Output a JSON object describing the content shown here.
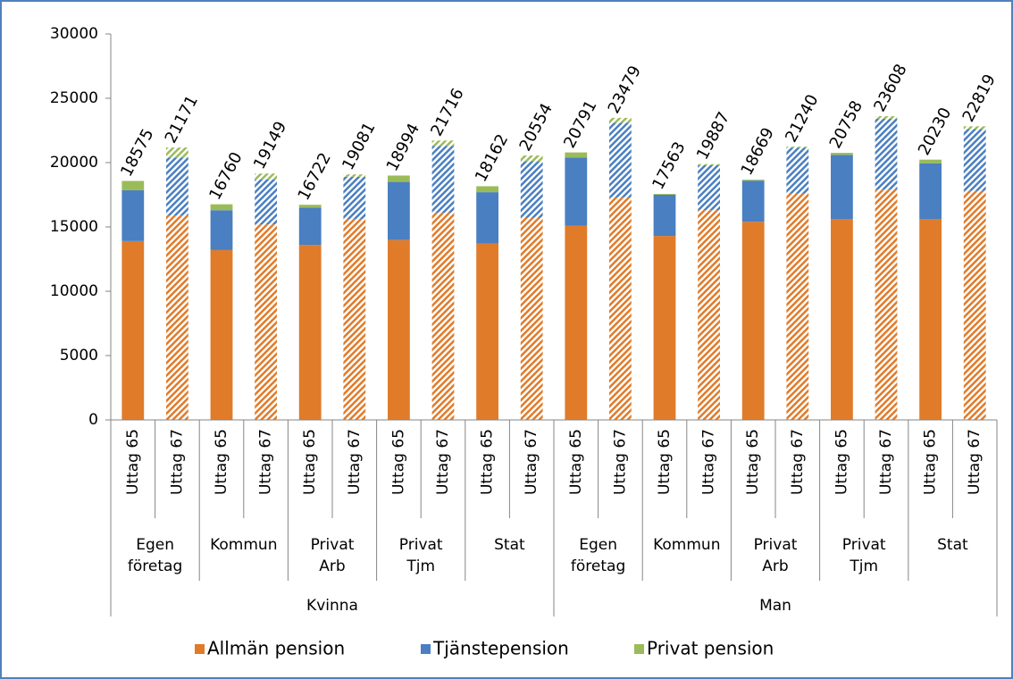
{
  "chart_data": {
    "type": "bar",
    "stacked": true,
    "groups": [
      {
        "name": "Kvinna",
        "subgroups": [
          {
            "name": "Egen företag",
            "categories": [
              "Uttag 65",
              "Uttag 67"
            ]
          },
          {
            "name": "Kommun",
            "categories": [
              "Uttag 65",
              "Uttag 67"
            ]
          },
          {
            "name": "Privat Arb",
            "categories": [
              "Uttag 65",
              "Uttag 67"
            ]
          },
          {
            "name": "Privat Tjm",
            "categories": [
              "Uttag 65",
              "Uttag 67"
            ]
          },
          {
            "name": "Stat",
            "categories": [
              "Uttag 65",
              "Uttag 67"
            ]
          }
        ]
      },
      {
        "name": "Man",
        "subgroups": [
          {
            "name": "Egen företag",
            "categories": [
              "Uttag 65",
              "Uttag 67"
            ]
          },
          {
            "name": "Kommun",
            "categories": [
              "Uttag 65",
              "Uttag 67"
            ]
          },
          {
            "name": "Privat Arb",
            "categories": [
              "Uttag 65",
              "Uttag 67"
            ]
          },
          {
            "name": "Privat Tjm",
            "categories": [
              "Uttag 65",
              "Uttag 67"
            ]
          },
          {
            "name": "Stat",
            "categories": [
              "Uttag 65",
              "Uttag 67"
            ]
          }
        ]
      }
    ],
    "series": [
      {
        "name": "Allmän pension",
        "color": "#e07b2a",
        "values": [
          13900,
          15900,
          13200,
          15200,
          13600,
          15600,
          14000,
          16100,
          13700,
          15700,
          15100,
          17300,
          14300,
          16300,
          15400,
          17600,
          15600,
          17900,
          15600,
          17800
        ]
      },
      {
        "name": "Tjänstepension",
        "color": "#4a7fc1",
        "values": [
          3950,
          4500,
          3100,
          3500,
          2900,
          3300,
          4500,
          5200,
          4000,
          4400,
          5300,
          5800,
          3200,
          3500,
          3200,
          3550,
          5000,
          5500,
          4350,
          4800
        ]
      },
      {
        "name": "Privat pension",
        "color": "#9bbb59",
        "values": [
          725,
          771,
          460,
          449,
          222,
          181,
          494,
          416,
          462,
          454,
          391,
          379,
          63,
          87,
          69,
          90,
          158,
          208,
          280,
          219
        ]
      }
    ],
    "totals": [
      18575,
      21171,
      16760,
      19149,
      16722,
      19081,
      18994,
      21716,
      18162,
      20554,
      20791,
      23479,
      17563,
      19887,
      18669,
      21240,
      20758,
      23608,
      20230,
      22819
    ],
    "hatched": [
      false,
      true,
      false,
      true,
      false,
      true,
      false,
      true,
      false,
      true,
      false,
      true,
      false,
      true,
      false,
      true,
      false,
      true,
      false,
      true
    ],
    "ylim": [
      0,
      30000
    ],
    "yticks": [
      0,
      5000,
      10000,
      15000,
      20000,
      25000,
      30000
    ],
    "grid": false,
    "legend": "bottom"
  }
}
